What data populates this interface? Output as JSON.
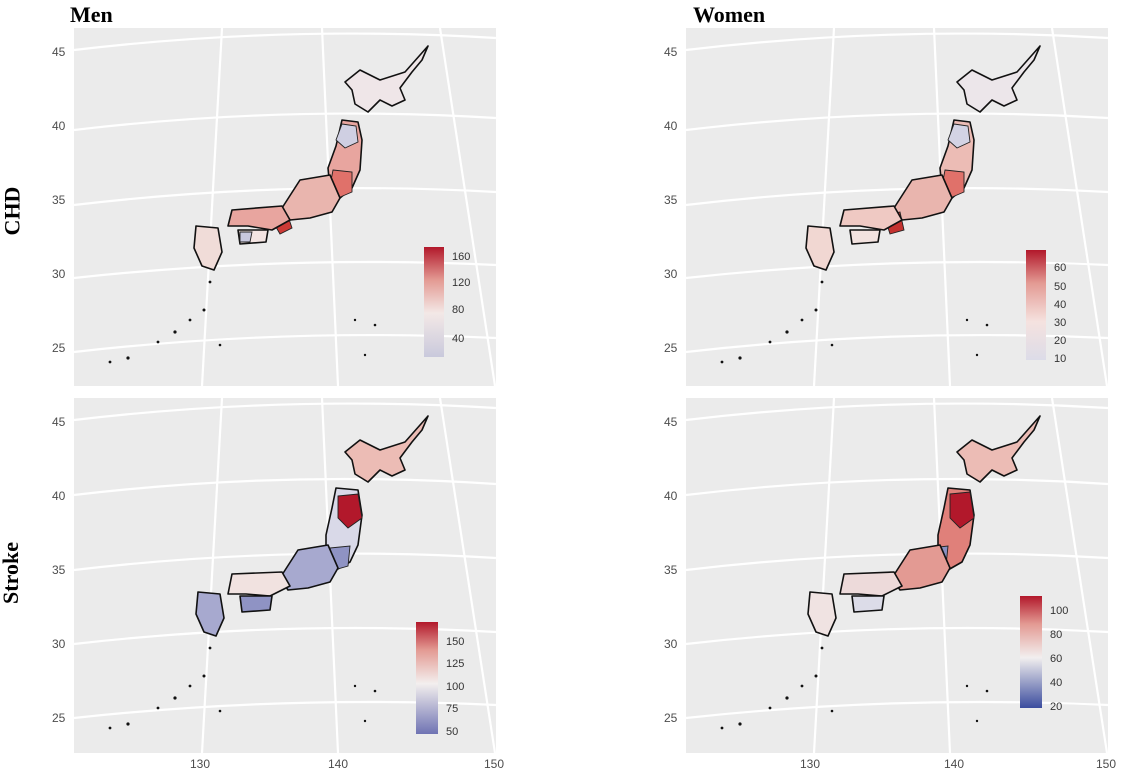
{
  "columns": [
    "Men",
    "Women"
  ],
  "rows": [
    "CHD",
    "Stroke"
  ],
  "map": {
    "y_axis": [
      "45",
      "40",
      "35",
      "30",
      "25"
    ],
    "x_axis": [
      "130",
      "140",
      "150"
    ]
  },
  "panels": [
    {
      "id": "chd-men",
      "legend_ticks": [
        "160",
        "120",
        "80",
        "40"
      ],
      "grad": "g-chd-men"
    },
    {
      "id": "chd-women",
      "legend_ticks": [
        "60",
        "50",
        "40",
        "30",
        "20",
        "10"
      ],
      "grad": "g-chd-women"
    },
    {
      "id": "stroke-men",
      "legend_ticks": [
        "150",
        "125",
        "100",
        "75",
        "50"
      ],
      "grad": "g-stroke-men"
    },
    {
      "id": "stroke-women",
      "legend_ticks": [
        "100",
        "80",
        "60",
        "40",
        "20"
      ],
      "grad": "g-stroke-women"
    }
  ]
}
